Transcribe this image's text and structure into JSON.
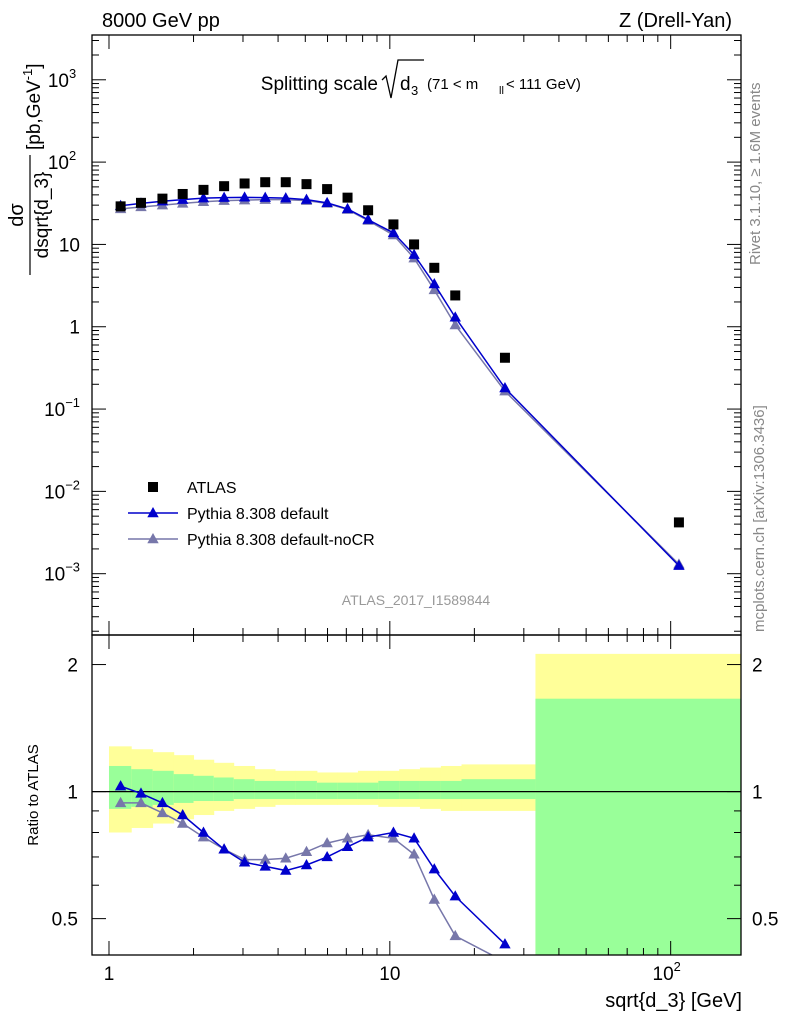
{
  "header": {
    "left": "8000 GeV pp",
    "right": "Z (Drell-Yan)"
  },
  "side_labels": {
    "rivet": "Rivet 3.1.10, ≥ 1.6M events",
    "mcplots": "mcplots.cern.ch [arXiv:1306.3436]"
  },
  "main_title": {
    "text": "Splitting scale",
    "sqrt_var": "d",
    "sqrt_sub": "3",
    "cut": "(71 < m",
    "cut_sub": "ll",
    "cut_end": "< 111 GeV)"
  },
  "analysis_id": "ATLAS_2017_I1589844",
  "ylabel_upper": {
    "num": "dσ",
    "den": "dsqrt{d_3}",
    "unit_open": "[pb,GeV",
    "unit_exp": "-1",
    "unit_close": "]"
  },
  "ylabel_lower": "Ratio to ATLAS",
  "xlabel": "sqrt{d_3} [GeV]",
  "legend": [
    {
      "label": "ATLAS",
      "marker": "square",
      "color": "#000000"
    },
    {
      "label": "Pythia 8.308 default",
      "marker": "triangle",
      "color": "#0000cc"
    },
    {
      "label": "Pythia 8.308 default-noCR",
      "marker": "triangle",
      "color": "#7777aa"
    }
  ],
  "x_ticks": [
    {
      "value": 1,
      "base": "1",
      "exp": ""
    },
    {
      "value": 10,
      "base": "10",
      "exp": ""
    },
    {
      "value": 100,
      "base": "10",
      "exp": "2"
    }
  ],
  "y_ticks_upper": [
    {
      "value": 0.001,
      "base": "10",
      "exp": "−3"
    },
    {
      "value": 0.01,
      "base": "10",
      "exp": "−2"
    },
    {
      "value": 0.1,
      "base": "10",
      "exp": "−1"
    },
    {
      "value": 1,
      "base": "1",
      "exp": ""
    },
    {
      "value": 10,
      "base": "10",
      "exp": ""
    },
    {
      "value": 100,
      "base": "10",
      "exp": "2"
    },
    {
      "value": 1000,
      "base": "10",
      "exp": "3"
    }
  ],
  "y_ticks_lower": [
    {
      "value": 0.5,
      "label": "0.5"
    },
    {
      "value": 1,
      "label": "1"
    },
    {
      "value": 2,
      "label": "2"
    }
  ],
  "chart_data": [
    {
      "type": "scatter",
      "title": "Splitting scale sqrt(d_3) (71 < m_ll < 111 GeV)",
      "xlabel": "sqrt{d_3} [GeV]",
      "ylabel": "dσ/dsqrt{d_3} [pb,GeV^-1]",
      "xscale": "log",
      "yscale": "log",
      "xlim": [
        0.87,
        178
      ],
      "ylim": [
        0.00018,
        3500
      ],
      "legend_position": "bottom-left",
      "series": [
        {
          "name": "ATLAS",
          "color": "#000000",
          "marker": "square",
          "x": [
            1.1,
            1.3,
            1.55,
            1.83,
            2.17,
            2.57,
            3.04,
            3.6,
            4.26,
            5.05,
            5.98,
            7.07,
            8.37,
            10.3,
            12.2,
            14.4,
            17.1,
            25.7,
            107
          ],
          "y": [
            29,
            32,
            36,
            41,
            46,
            51,
            55,
            57,
            57,
            54,
            47,
            37,
            26,
            17.5,
            10,
            5.2,
            2.4,
            0.42,
            0.0042
          ]
        },
        {
          "name": "Pythia 8.308 default",
          "color": "#0000cc",
          "marker": "triangle",
          "x": [
            1.1,
            1.3,
            1.55,
            1.83,
            2.17,
            2.57,
            3.04,
            3.6,
            4.26,
            5.05,
            5.98,
            7.07,
            8.37,
            10.3,
            12.2,
            14.4,
            17.1,
            25.7,
            107
          ],
          "y": [
            29.5,
            31.5,
            33.5,
            35,
            36.5,
            37,
            37.3,
            37,
            36.5,
            35,
            32,
            27,
            20,
            13.8,
            7.5,
            3.3,
            1.3,
            0.18,
            0.00125
          ]
        },
        {
          "name": "Pythia 8.308 default-noCR",
          "color": "#7777aa",
          "marker": "triangle",
          "x": [
            1.1,
            1.3,
            1.55,
            1.83,
            2.17,
            2.57,
            3.04,
            3.6,
            4.26,
            5.05,
            5.98,
            7.07,
            8.37,
            10.3,
            12.2,
            14.4,
            17.1,
            25.7,
            107
          ],
          "y": [
            27,
            28.5,
            30,
            31.5,
            33,
            34,
            34.5,
            35,
            35,
            34,
            31.5,
            26.5,
            19.5,
            13,
            6.8,
            2.8,
            1.05,
            0.165,
            0.0013
          ]
        }
      ]
    },
    {
      "type": "line",
      "ylabel": "Ratio to ATLAS",
      "xlabel": "sqrt{d_3} [GeV]",
      "xscale": "log",
      "yscale": "log",
      "xlim": [
        0.87,
        178
      ],
      "ylim": [
        0.41,
        2.35
      ],
      "reference_line": 1,
      "bands": {
        "edges": [
          1,
          1.2,
          1.43,
          1.7,
          2.0,
          2.36,
          2.78,
          3.3,
          3.9,
          4.6,
          5.5,
          6.5,
          7.7,
          9.1,
          10.8,
          12.8,
          15.2,
          18.0,
          33,
          178
        ],
        "yellow_lo": [
          0.8,
          0.82,
          0.84,
          0.86,
          0.88,
          0.9,
          0.91,
          0.92,
          0.93,
          0.93,
          0.93,
          0.93,
          0.93,
          0.92,
          0.92,
          0.91,
          0.9,
          0.9,
          0.38
        ],
        "yellow_hi": [
          1.28,
          1.26,
          1.24,
          1.22,
          1.19,
          1.17,
          1.15,
          1.13,
          1.12,
          1.12,
          1.11,
          1.11,
          1.12,
          1.12,
          1.13,
          1.14,
          1.15,
          1.16,
          2.12
        ],
        "green_lo": [
          0.91,
          0.92,
          0.93,
          0.94,
          0.95,
          0.95,
          0.96,
          0.96,
          0.96,
          0.96,
          0.96,
          0.96,
          0.96,
          0.96,
          0.96,
          0.96,
          0.96,
          0.96,
          0.405
        ],
        "green_hi": [
          1.15,
          1.13,
          1.12,
          1.1,
          1.09,
          1.08,
          1.07,
          1.06,
          1.06,
          1.06,
          1.05,
          1.05,
          1.05,
          1.06,
          1.06,
          1.06,
          1.06,
          1.07,
          1.66
        ]
      },
      "series": [
        {
          "name": "Pythia 8.308 default",
          "color": "#0000cc",
          "marker": "triangle",
          "x": [
            1.1,
            1.3,
            1.55,
            1.83,
            2.17,
            2.57,
            3.04,
            3.6,
            4.26,
            5.05,
            5.98,
            7.07,
            8.37,
            10.3,
            12.2,
            14.4,
            17.1,
            25.7
          ],
          "y": [
            1.03,
            0.99,
            0.94,
            0.88,
            0.8,
            0.73,
            0.68,
            0.665,
            0.65,
            0.67,
            0.7,
            0.74,
            0.78,
            0.8,
            0.775,
            0.655,
            0.565,
            0.435
          ]
        },
        {
          "name": "Pythia 8.308 default-noCR",
          "color": "#7777aa",
          "marker": "triangle",
          "x": [
            1.1,
            1.3,
            1.55,
            1.83,
            2.17,
            2.57,
            3.04,
            3.6,
            4.26,
            5.05,
            5.98,
            7.07,
            8.37,
            10.3,
            12.2,
            14.4,
            17.1,
            25.7
          ],
          "y": [
            0.94,
            0.94,
            0.89,
            0.84,
            0.78,
            0.73,
            0.69,
            0.69,
            0.695,
            0.72,
            0.755,
            0.775,
            0.79,
            0.775,
            0.71,
            0.555,
            0.455,
            0.395
          ]
        }
      ]
    }
  ]
}
